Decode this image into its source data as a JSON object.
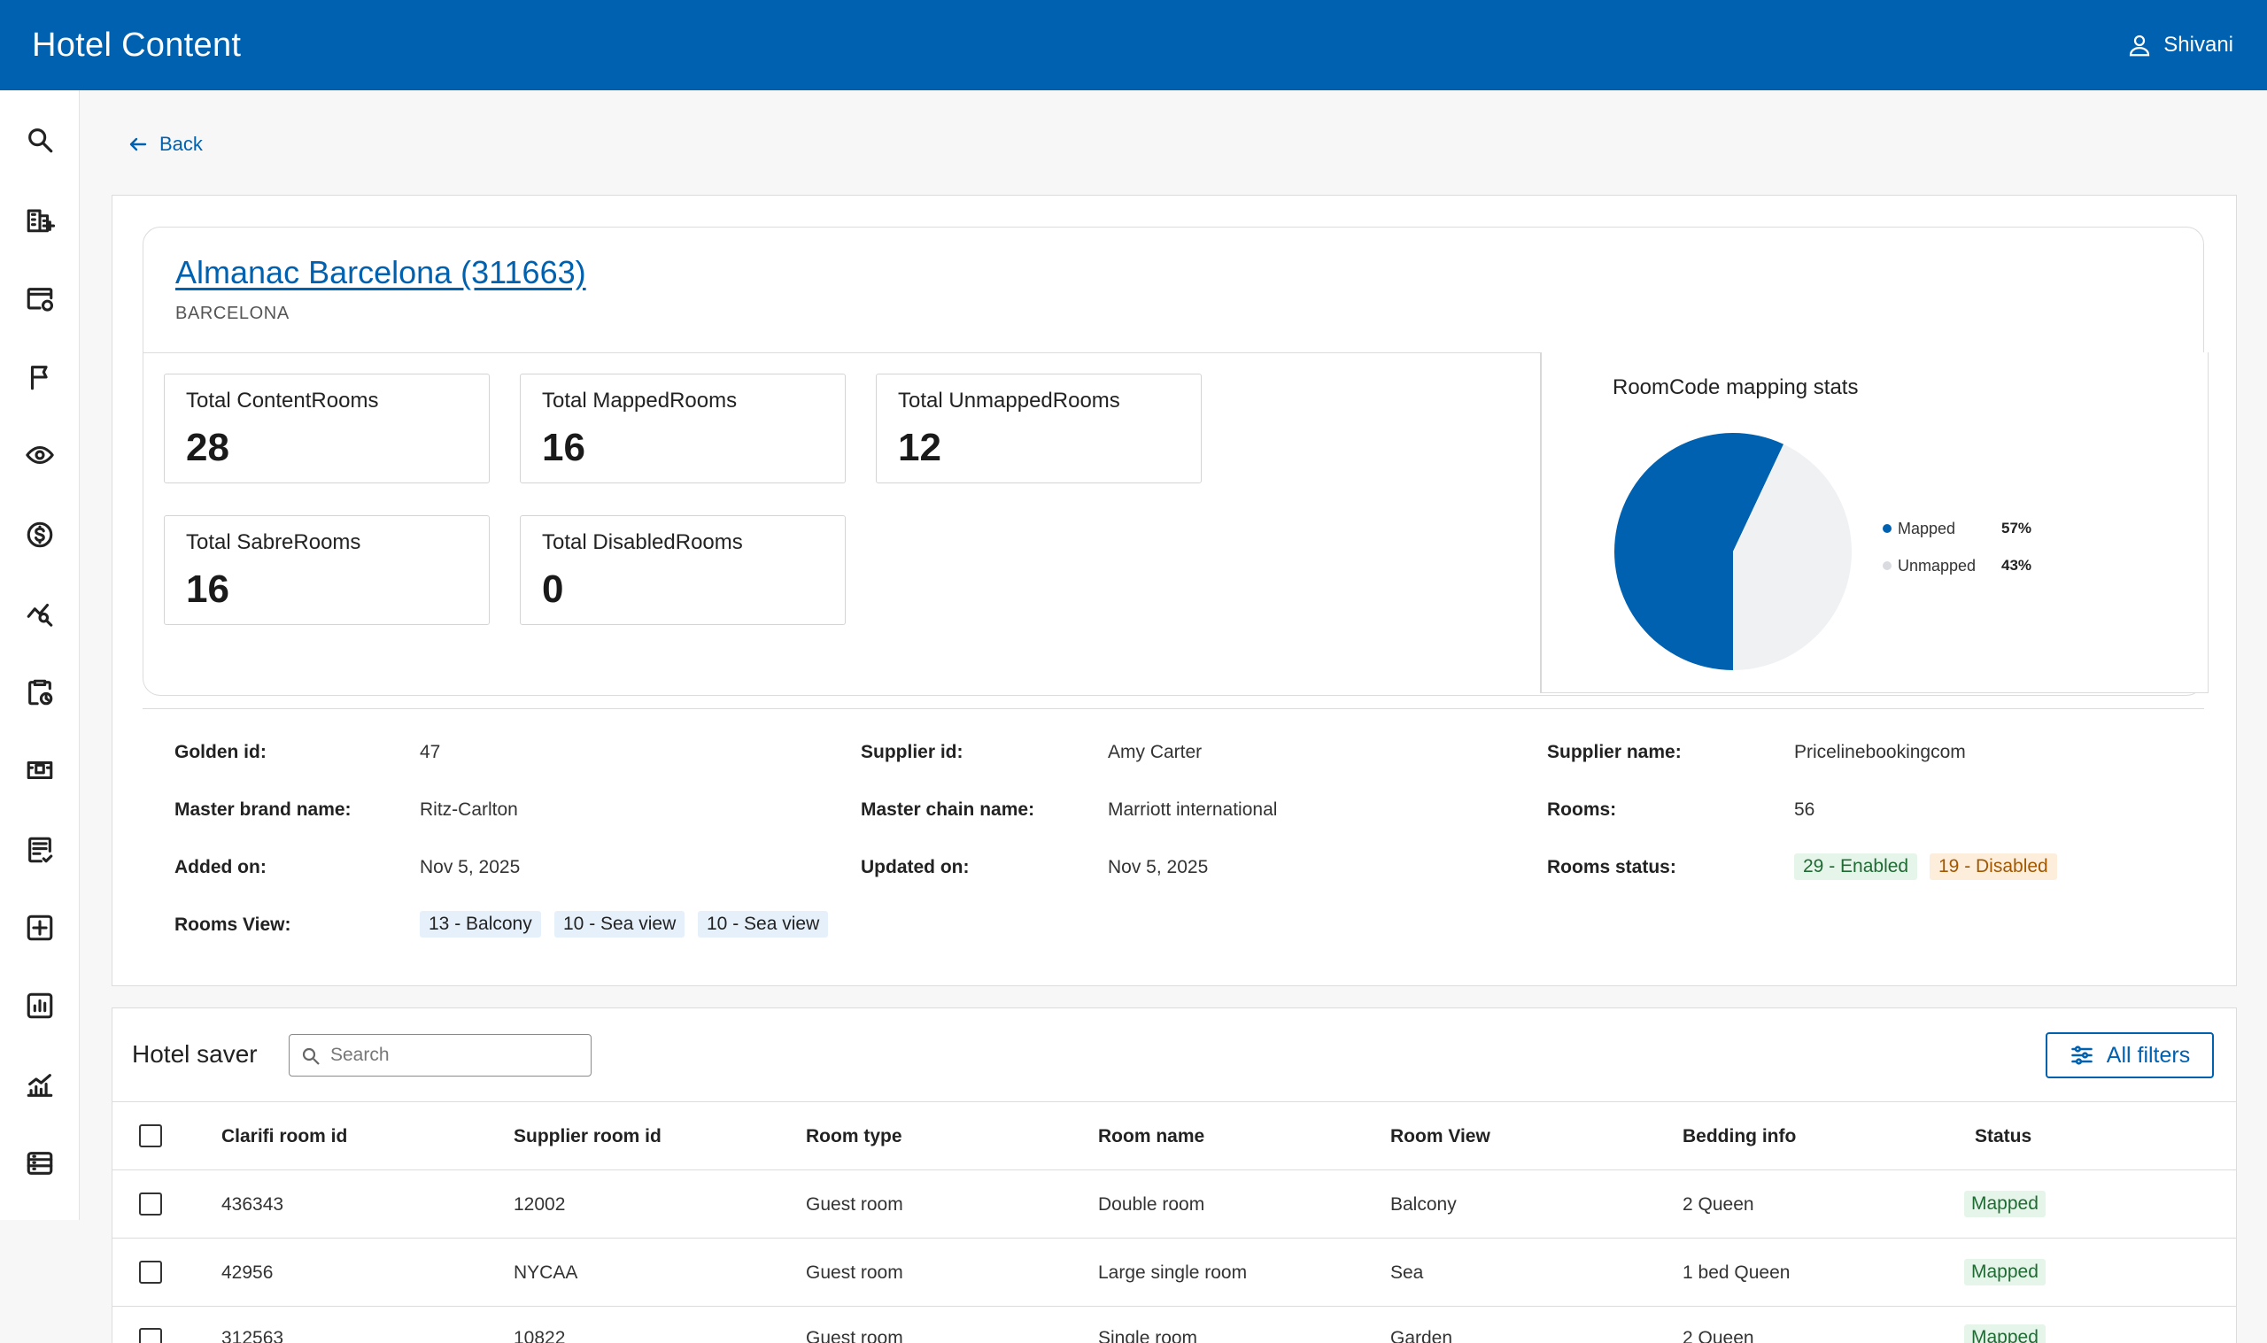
{
  "header": {
    "title": "Hotel Content",
    "user_name": "Shivani"
  },
  "sidebar": {
    "icons": [
      "search-icon",
      "building-add-icon",
      "browser-sync-icon",
      "flag-icon",
      "eye-icon",
      "dollar-icon",
      "chart-search-icon",
      "clipboard-clock-icon",
      "bed-icon",
      "document-check-icon",
      "plus-box-icon",
      "bar-chart-icon",
      "line-chart-icon",
      "list-icon"
    ]
  },
  "nav": {
    "back_label": "Back"
  },
  "hotel": {
    "name": "Almanac Barcelona (311663)",
    "city": "BARCELONA"
  },
  "stats": [
    {
      "label": "Total ContentRooms",
      "value": "28"
    },
    {
      "label": "Total MappedRooms",
      "value": "16"
    },
    {
      "label": "Total UnmappedRooms",
      "value": "12"
    },
    {
      "label": "Total SabreRooms",
      "value": "16"
    },
    {
      "label": "Total DisabledRooms",
      "value": "0"
    }
  ],
  "chart_data": {
    "type": "pie",
    "title": "RoomCode mapping stats",
    "labels": [
      "Mapped",
      "Unmapped"
    ],
    "values": [
      57,
      43
    ],
    "value_labels": [
      "57%",
      "43%"
    ],
    "colors": [
      "#0061b0",
      "#f0f1f3"
    ],
    "legend": "right"
  },
  "details": {
    "golden_id_label": "Golden id:",
    "golden_id": "47",
    "supplier_id_label": "Supplier id:",
    "supplier_id": "Amy Carter",
    "supplier_name_label": "Supplier name:",
    "supplier_name": "Pricelinebookingcom",
    "brand_label": "Master brand name:",
    "brand": "Ritz-Carlton",
    "chain_label": "Master chain name:",
    "chain": "Marriott international",
    "rooms_label": "Rooms:",
    "rooms": "56",
    "added_label": "Added on:",
    "added": "Nov 5, 2025",
    "updated_label": "Updated on:",
    "updated": "Nov 5, 2025",
    "rooms_status_label": "Rooms status:",
    "enabled": "29 - Enabled",
    "disabled": "19 - Disabled",
    "rooms_view_label": "Rooms View:",
    "views": [
      "13 - Balcony",
      "10 - Sea view",
      "10 - Sea view"
    ]
  },
  "table": {
    "title": "Hotel saver",
    "search_placeholder": "Search",
    "filters_label": "All filters",
    "columns": [
      "Clarifi room id",
      "Supplier room id",
      "Room type",
      "Room name",
      "Room View",
      "Bedding info",
      "Status"
    ],
    "rows": [
      [
        "436343",
        "12002",
        "Guest room",
        "Double room",
        "Balcony",
        "2 Queen",
        "Mapped"
      ],
      [
        "42956",
        "NYCAA",
        "Guest room",
        "Large single room",
        "Sea",
        "1 bed Queen",
        "Mapped"
      ],
      [
        "312563",
        "10822",
        "Guest room",
        "Single room",
        "Garden",
        "2 Queen",
        "Mapped"
      ]
    ]
  }
}
